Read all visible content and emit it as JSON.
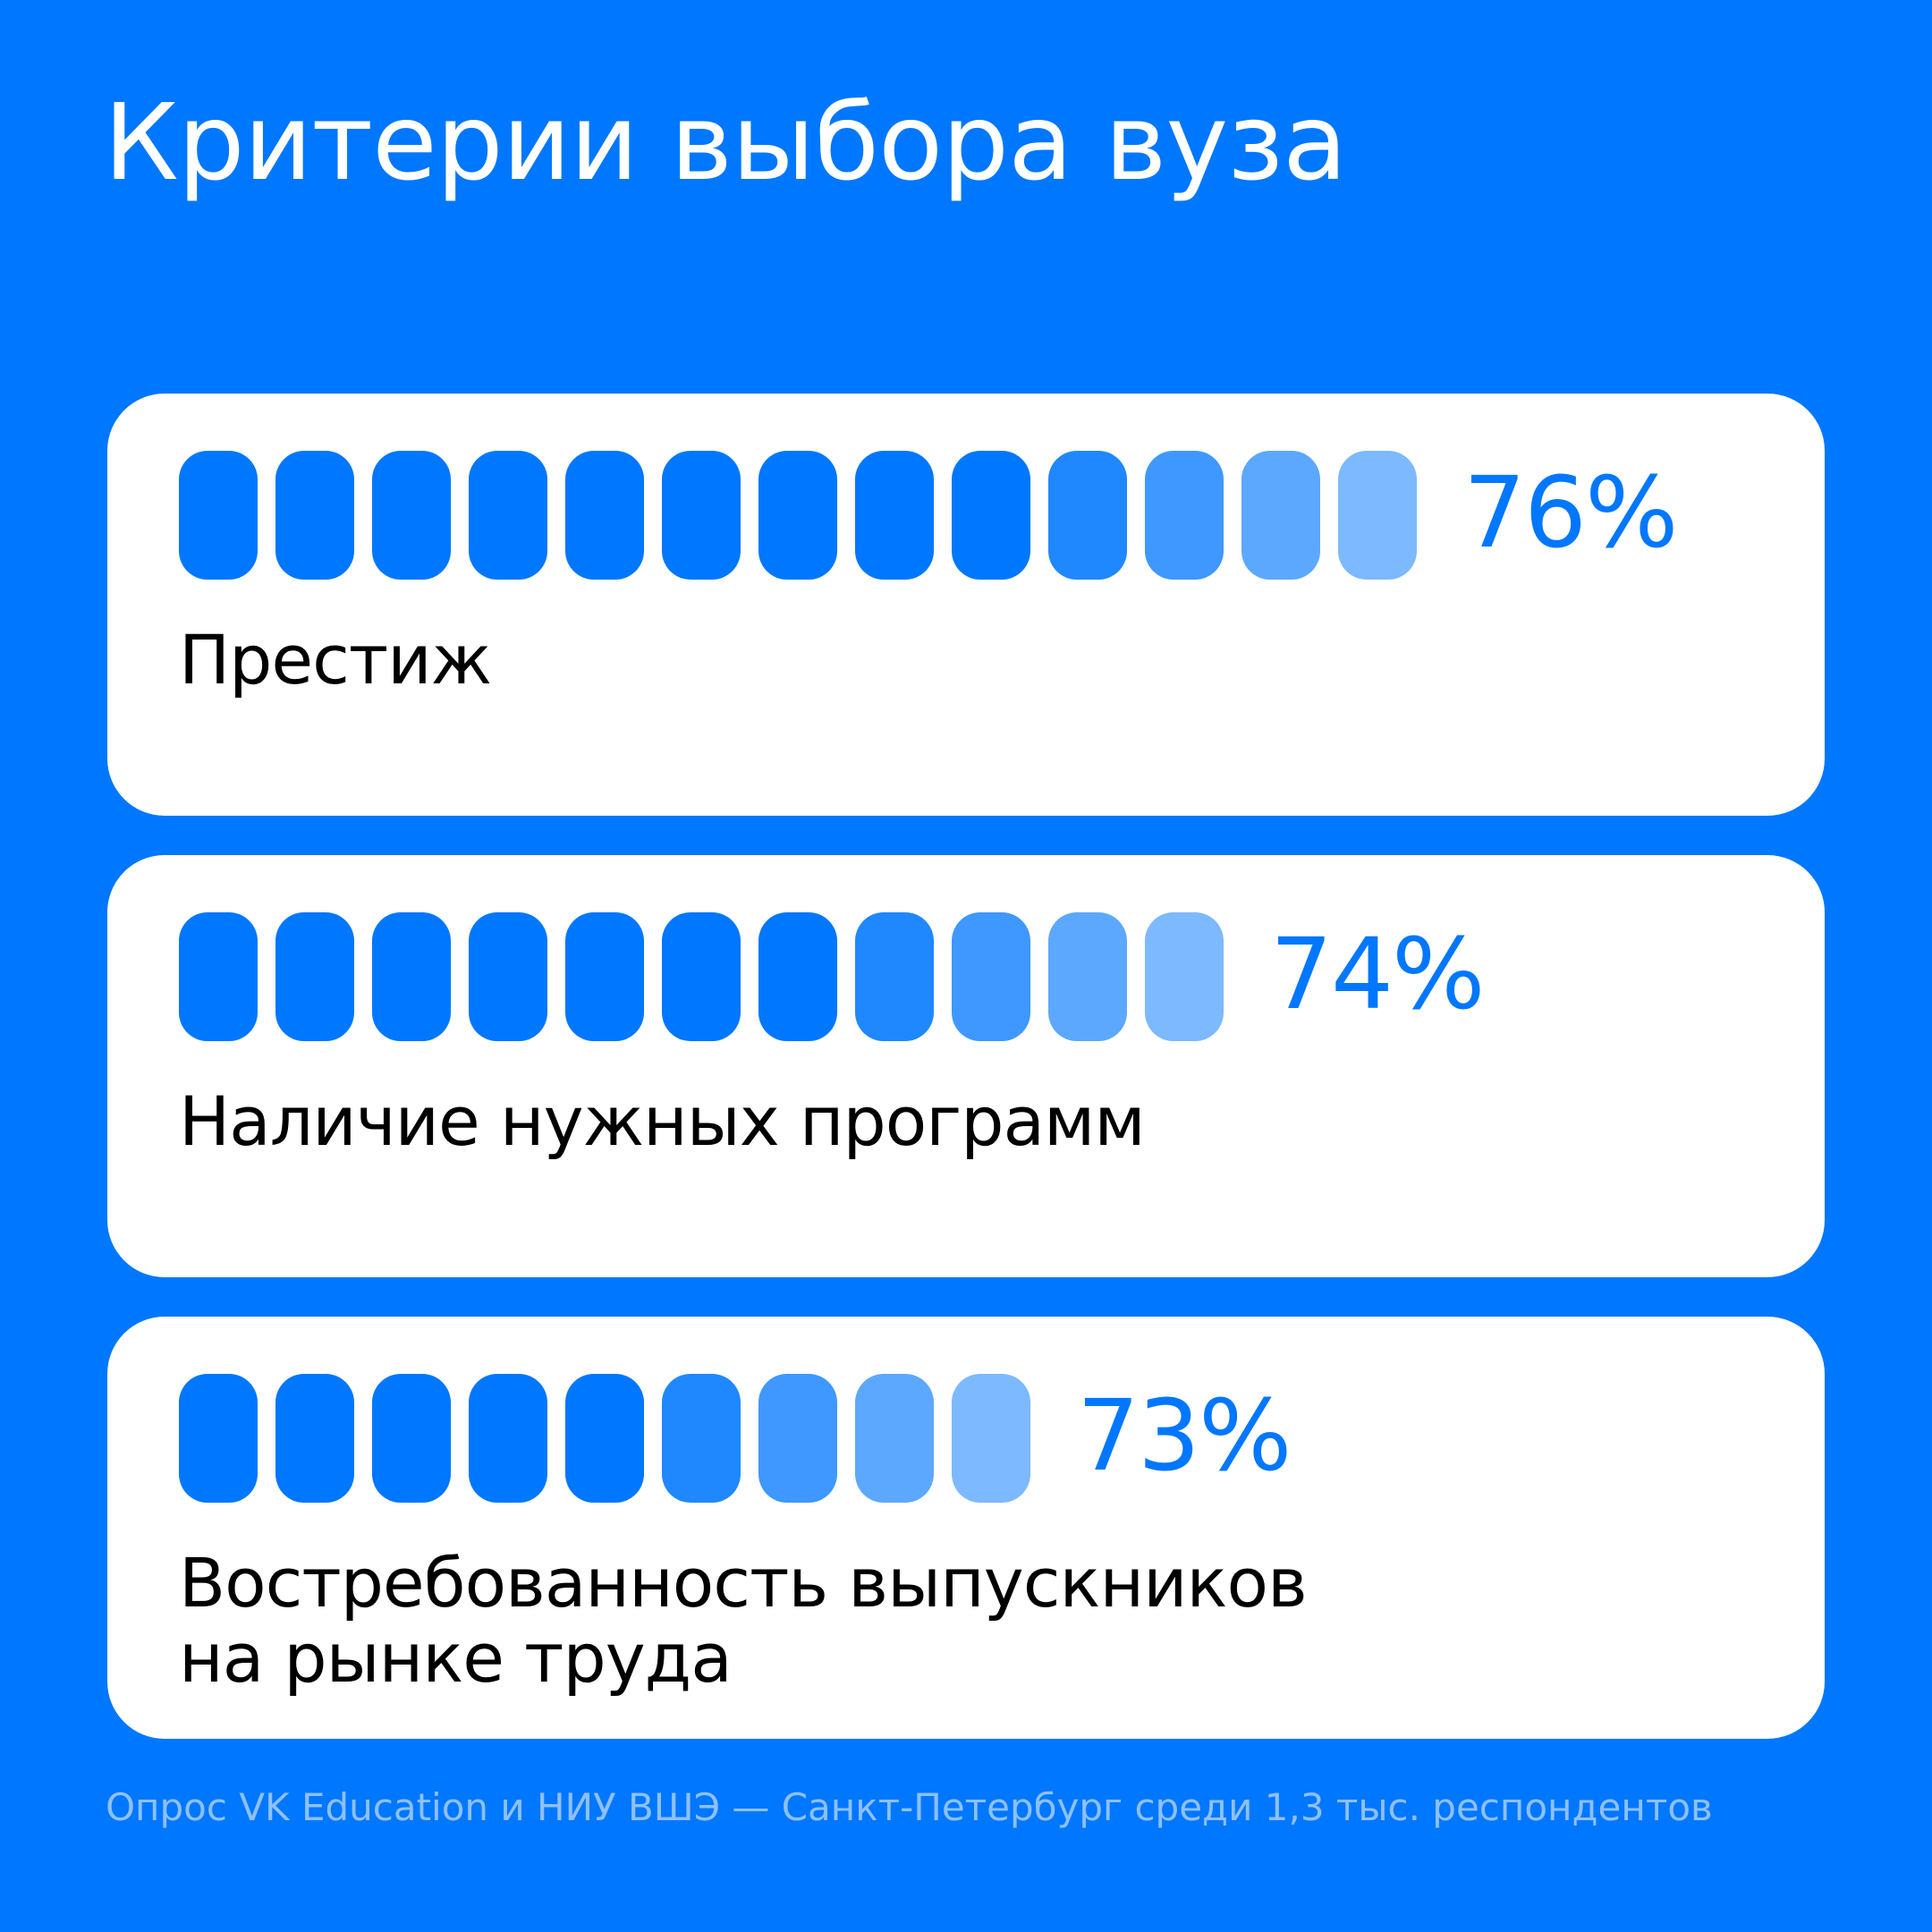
{
  "title": "Критерии выбора вуза",
  "colors": {
    "background": "#0077FF",
    "card": "#FFFFFF",
    "percent": "#0077FF",
    "segment_shades": [
      "#0077FF",
      "#1F88FF",
      "#3E98FF",
      "#5DA8FF",
      "#7CB9FF"
    ]
  },
  "chart_data": {
    "type": "bar",
    "unit": "%",
    "categories": [
      "Престиж",
      "Наличие нужных программ",
      "Востребованность выпускников\nна рынке труда"
    ],
    "values": [
      76,
      74,
      73
    ],
    "value_labels": [
      "76%",
      "74%",
      "73%"
    ],
    "segments": [
      13,
      11,
      9
    ]
  },
  "source": "Опрос VK Education и НИУ ВШЭ — Санкт-Петербург среди 1,3 тыс. респондентов"
}
